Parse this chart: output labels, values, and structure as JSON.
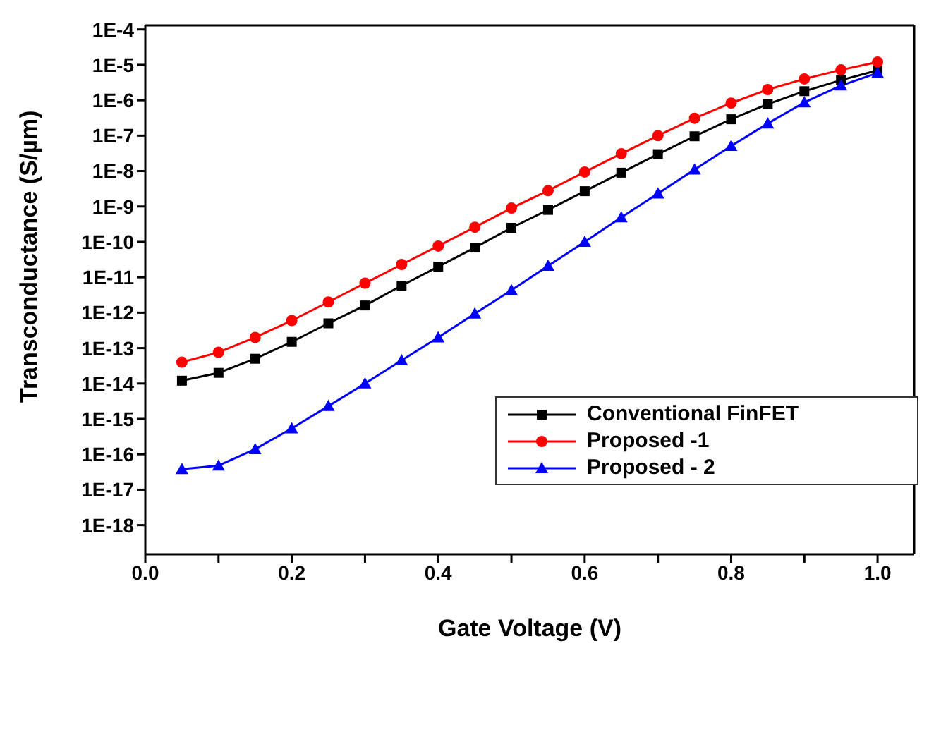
{
  "chart_data": {
    "type": "line",
    "xlabel": "Gate Voltage (V)",
    "ylabel": "Transconductance (S/µm)",
    "x": [
      0.05,
      0.1,
      0.15,
      0.2,
      0.25,
      0.3,
      0.35,
      0.4,
      0.45,
      0.5,
      0.55,
      0.6,
      0.65,
      0.7,
      0.75,
      0.8,
      0.85,
      0.9,
      0.95,
      1.0
    ],
    "series": [
      {
        "name": "Conventional FinFET",
        "color": "#000000",
        "marker": "square",
        "values": [
          1.2e-14,
          2e-14,
          5e-14,
          1.5e-13,
          5e-13,
          1.6e-12,
          5.8e-12,
          2e-11,
          6.9e-11,
          2.5e-10,
          8e-10,
          2.7e-09,
          9e-09,
          3e-08,
          9.6e-08,
          2.9e-07,
          7.8e-07,
          1.8e-06,
          3.7e-06,
          7e-06
        ]
      },
      {
        "name": "Proposed -1",
        "color": "#ff0000",
        "marker": "circle",
        "values": [
          4e-14,
          7.6e-14,
          2e-13,
          6e-13,
          2e-12,
          6.8e-12,
          2.3e-11,
          7.6e-11,
          2.6e-10,
          9e-10,
          2.8e-09,
          9.4e-09,
          3.1e-08,
          1e-07,
          3.1e-07,
          8.3e-07,
          2e-06,
          4e-06,
          7.2e-06,
          1.2e-05
        ]
      },
      {
        "name": "Proposed - 2",
        "color": "#0000ff",
        "marker": "triangle",
        "values": [
          3.8e-17,
          4.8e-17,
          1.4e-16,
          5.4e-16,
          2.3e-15,
          1e-14,
          4.5e-14,
          2e-13,
          9.4e-13,
          4.3e-12,
          2.1e-11,
          1e-10,
          4.9e-10,
          2.3e-09,
          1.1e-08,
          5.1e-08,
          2.2e-07,
          8.7e-07,
          2.6e-06,
          5.9e-06
        ]
      }
    ],
    "log": "y",
    "ylim": [
      1.5e-19,
      0.00013
    ],
    "yticks": [
      {
        "value": 0.0001,
        "label": "1E-4"
      },
      {
        "value": 1e-05,
        "label": "1E-5"
      },
      {
        "value": 1e-06,
        "label": "1E-6"
      },
      {
        "value": 1e-07,
        "label": "1E-7"
      },
      {
        "value": 1e-08,
        "label": "1E-8"
      },
      {
        "value": 1e-09,
        "label": "1E-9"
      },
      {
        "value": 1e-10,
        "label": "1E-10"
      },
      {
        "value": 1e-11,
        "label": "1E-11"
      },
      {
        "value": 1e-12,
        "label": "1E-12"
      },
      {
        "value": 1e-13,
        "label": "1E-13"
      },
      {
        "value": 1e-14,
        "label": "1E-14"
      },
      {
        "value": 1e-15,
        "label": "1E-15"
      },
      {
        "value": 1e-16,
        "label": "1E-16"
      },
      {
        "value": 1e-17,
        "label": "1E-17"
      },
      {
        "value": 1e-18,
        "label": "1E-18"
      }
    ],
    "xlim": [
      0,
      1.05
    ],
    "xticks": [
      {
        "value": 0,
        "label": "0.0"
      },
      {
        "value": 0.1,
        "label": null
      },
      {
        "value": 0.2,
        "label": "0.2"
      },
      {
        "value": 0.3,
        "label": null
      },
      {
        "value": 0.4,
        "label": "0.4"
      },
      {
        "value": 0.5,
        "label": null
      },
      {
        "value": 0.6,
        "label": "0.6"
      },
      {
        "value": 0.7,
        "label": null
      },
      {
        "value": 0.8,
        "label": "0.8"
      },
      {
        "value": 0.9,
        "label": null
      },
      {
        "value": 1.0,
        "label": "1.0"
      }
    ],
    "grid": false,
    "legend": "bottom right",
    "line_style": "solid"
  }
}
